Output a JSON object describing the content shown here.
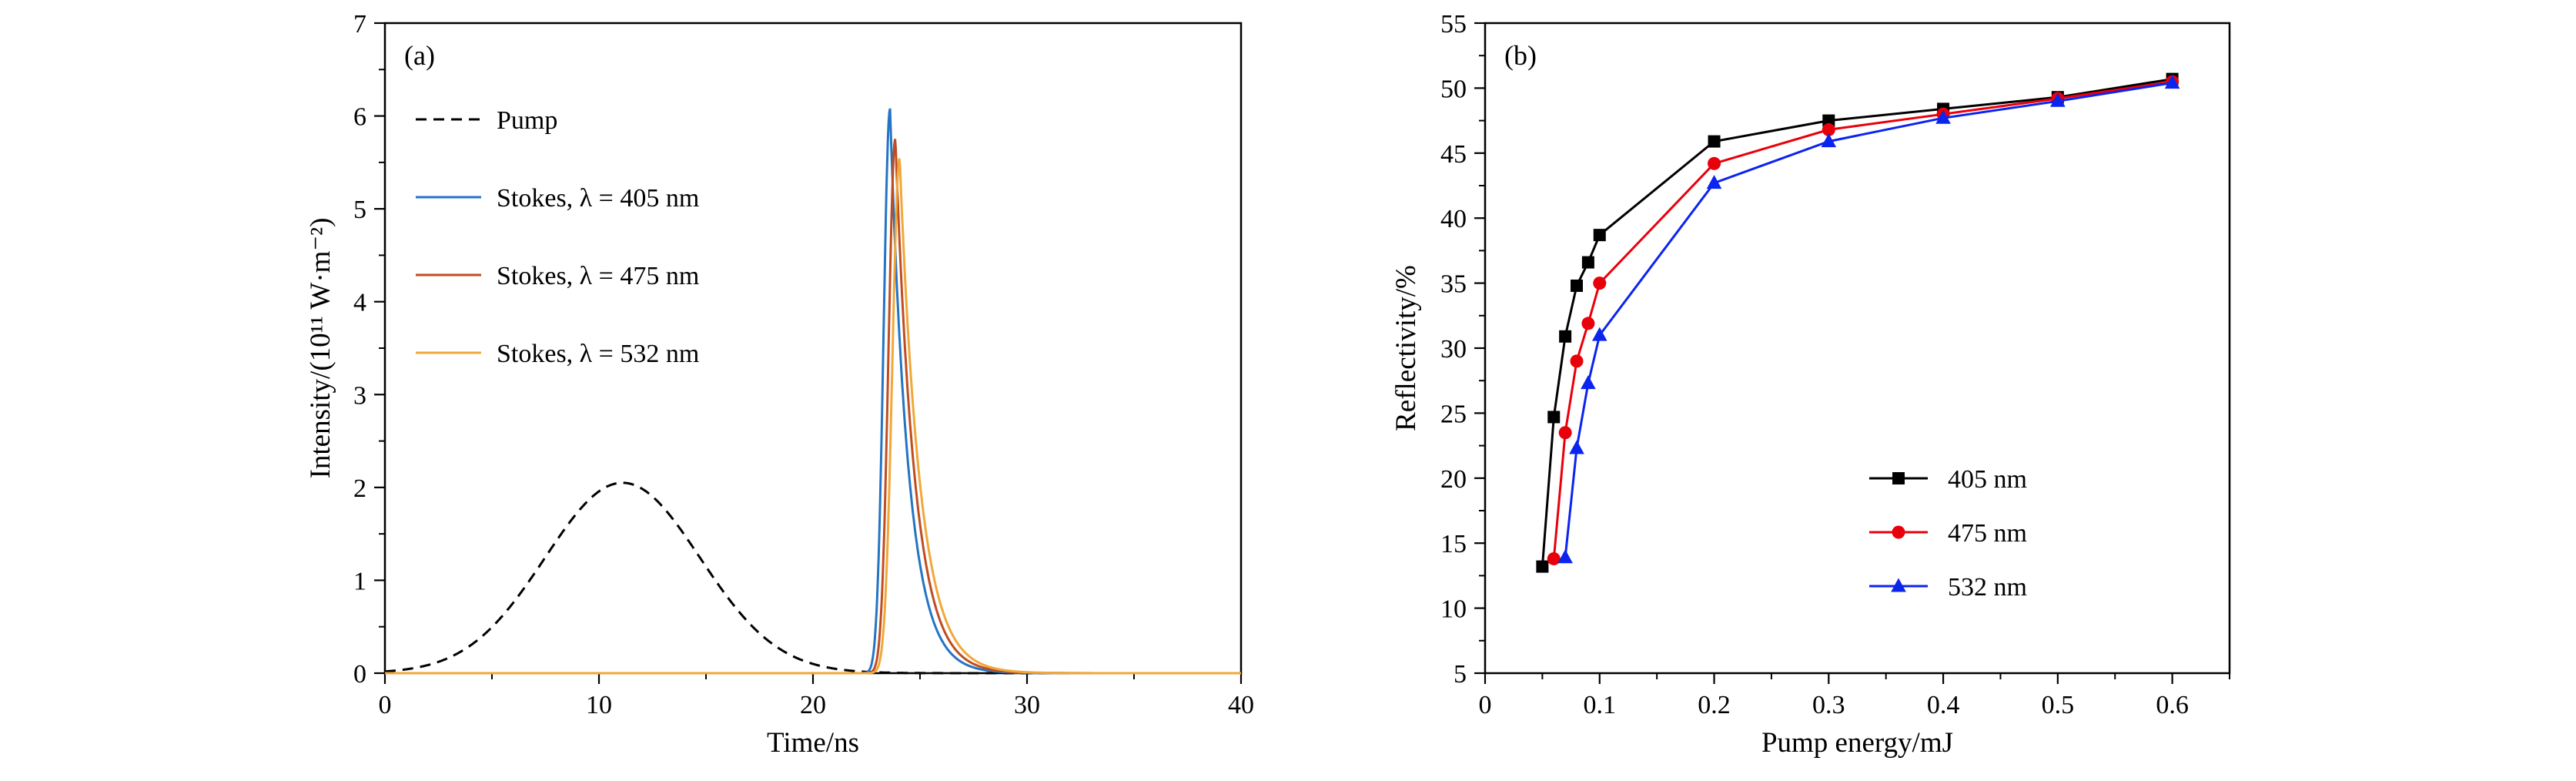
{
  "figure": {
    "background": "#ffffff"
  },
  "chart_data": [
    {
      "id": "a",
      "type": "line",
      "panel_label": "(a)",
      "xlabel": "Time/ns",
      "ylabel": "Intensity/(10¹¹ W·m⁻²)",
      "xlim": [
        0,
        40
      ],
      "ylim": [
        0,
        7
      ],
      "xticks": [
        0,
        10,
        20,
        30,
        40
      ],
      "xtick_labels": [
        "0",
        "10",
        "20",
        "30",
        "40"
      ],
      "yticks": [
        0,
        1,
        2,
        3,
        4,
        5,
        6,
        7
      ],
      "ytick_labels": [
        "0",
        "1",
        "2",
        "3",
        "4",
        "5",
        "6",
        "7"
      ],
      "x_minor_step": 5,
      "y_minor_step": 0.5,
      "grid": false,
      "legend_position": "top-left",
      "series": [
        {
          "name": "Pump",
          "color": "#000000",
          "linestyle": "dashed",
          "model": {
            "kind": "gaussian",
            "amp": 2.05,
            "center": 11.1,
            "sigma": 3.62
          }
        },
        {
          "name": "Stokes, λ = 405 nm",
          "color": "#2474c4",
          "linestyle": "solid",
          "model": {
            "kind": "pulse",
            "amp": 6.08,
            "center": 23.6,
            "rise": 0.3,
            "fall": 0.85
          }
        },
        {
          "name": "Stokes, λ = 475 nm",
          "color": "#bf4d22",
          "linestyle": "solid",
          "model": {
            "kind": "pulse",
            "amp": 5.76,
            "center": 23.85,
            "rise": 0.32,
            "fall": 0.9
          }
        },
        {
          "name": "Stokes, λ = 532 nm",
          "color": "#f0a838",
          "linestyle": "solid",
          "model": {
            "kind": "pulse",
            "amp": 5.55,
            "center": 24.05,
            "rise": 0.34,
            "fall": 0.95
          }
        }
      ]
    },
    {
      "id": "b",
      "type": "scatter-line",
      "panel_label": "(b)",
      "xlabel": "Pump energy/mJ",
      "ylabel": "Reflectivity/%",
      "xlim": [
        0,
        0.65
      ],
      "ylim": [
        5,
        55
      ],
      "xticks": [
        0,
        0.1,
        0.2,
        0.3,
        0.4,
        0.5,
        0.6
      ],
      "xtick_labels": [
        "0",
        "0.1",
        "0.2",
        "0.3",
        "0.4",
        "0.5",
        "0.6"
      ],
      "yticks": [
        5,
        10,
        15,
        20,
        25,
        30,
        35,
        40,
        45,
        50,
        55
      ],
      "ytick_labels": [
        "5",
        "10",
        "15",
        "20",
        "25",
        "30",
        "35",
        "40",
        "45",
        "50",
        "55"
      ],
      "x_minor_step": 0.05,
      "y_minor_step": 2.5,
      "grid": false,
      "legend_position": "center-right",
      "series": [
        {
          "name": "405 nm",
          "color": "#000000",
          "marker": "square",
          "linestyle": "solid",
          "x": [
            0.05,
            0.06,
            0.07,
            0.08,
            0.09,
            0.1,
            0.2,
            0.3,
            0.4,
            0.5,
            0.6
          ],
          "y": [
            13.2,
            24.7,
            30.9,
            34.8,
            36.6,
            38.7,
            45.9,
            47.5,
            48.4,
            49.3,
            50.7
          ]
        },
        {
          "name": "475 nm",
          "color": "#e8000b",
          "marker": "circle",
          "linestyle": "solid",
          "x": [
            0.06,
            0.07,
            0.08,
            0.09,
            0.1,
            0.2,
            0.3,
            0.4,
            0.5,
            0.6
          ],
          "y": [
            13.8,
            23.5,
            29.0,
            31.9,
            35.0,
            44.2,
            46.8,
            48.0,
            49.2,
            50.5
          ]
        },
        {
          "name": "532 nm",
          "color": "#0b24ee",
          "marker": "triangle",
          "linestyle": "solid",
          "x": [
            0.07,
            0.08,
            0.09,
            0.1,
            0.2,
            0.3,
            0.4,
            0.5,
            0.6
          ],
          "y": [
            13.9,
            22.3,
            27.3,
            31.0,
            42.7,
            45.9,
            47.7,
            49.0,
            50.4
          ]
        }
      ]
    }
  ]
}
